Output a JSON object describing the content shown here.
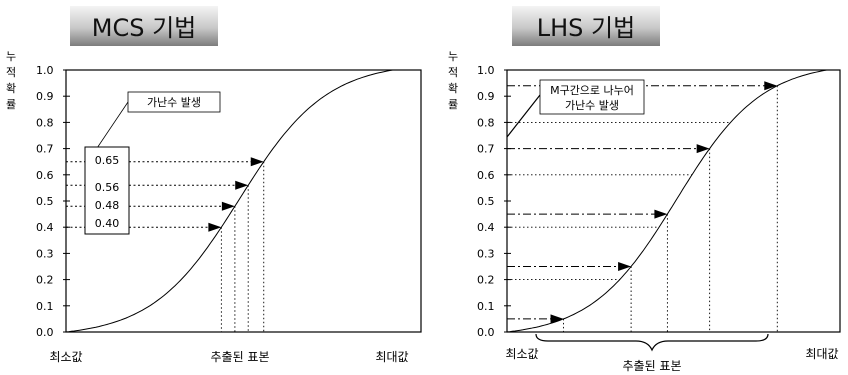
{
  "left_panel": {
    "title": "MCS 기법",
    "ylabel_chars": [
      "누",
      "적",
      "확",
      "률"
    ],
    "yticks": [
      "1.0",
      "0.9",
      "0.8",
      "0.7",
      "0.6",
      "0.5",
      "0.4",
      "0.3",
      "0.2",
      "0.1",
      "0.0"
    ],
    "x_min_label": "최소값",
    "x_mid_label": "추출된 표본",
    "x_max_label": "최대값",
    "callout": "가난수 발생",
    "random_values": [
      "0.65",
      "0.56",
      "0.48",
      "0.40"
    ],
    "sample_probs": [
      0.65,
      0.56,
      0.48,
      0.4
    ]
  },
  "right_panel": {
    "title": "LHS 기법",
    "ylabel_chars": [
      "누",
      "적",
      "확",
      "률"
    ],
    "yticks": [
      "1.0",
      "0.9",
      "0.8",
      "0.7",
      "0.6",
      "0.5",
      "0.4",
      "0.3",
      "0.2",
      "0.1",
      "0.0"
    ],
    "x_min_label": "최소값",
    "x_mid_label": "추출된 표본",
    "x_max_label": "최대값",
    "callout_line1": "M구간으로 나누어",
    "callout_line2": "가난수 발생",
    "interval_bounds": [
      0.2,
      0.4,
      0.6,
      0.8
    ],
    "sample_probs": [
      0.05,
      0.25,
      0.45,
      0.7,
      0.94
    ]
  },
  "colors": {
    "title_gradient_top": "#f2f2f2",
    "title_gradient_bottom": "#7a7a7a",
    "line": "#000000"
  }
}
